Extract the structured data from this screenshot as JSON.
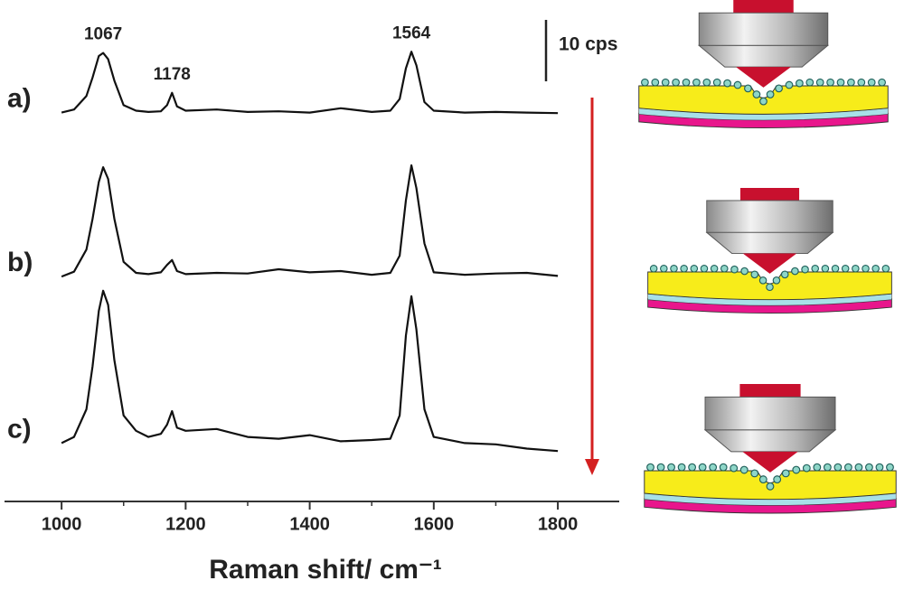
{
  "chart_data": {
    "type": "line",
    "x_label": "Raman shift/ cm⁻¹",
    "x": [
      1000,
      1020,
      1040,
      1050,
      1060,
      1067,
      1075,
      1085,
      1100,
      1120,
      1140,
      1160,
      1170,
      1178,
      1186,
      1200,
      1250,
      1300,
      1350,
      1400,
      1450,
      1500,
      1530,
      1545,
      1555,
      1564,
      1572,
      1585,
      1600,
      1650,
      1700,
      1750,
      1800
    ],
    "series": [
      {
        "name": "a)",
        "color": "#111111",
        "values": [
          63.3,
          63.8,
          66,
          69,
          72.5,
          73,
          72,
          68.5,
          64.5,
          63.6,
          63.4,
          63.5,
          64.5,
          66.5,
          64.3,
          63.6,
          63.8,
          63.4,
          63.5,
          63.3,
          64,
          63.4,
          63.6,
          65.5,
          70.5,
          73.2,
          71,
          65,
          63.6,
          63.3,
          63.4,
          63.3,
          63.2
        ]
      },
      {
        "name": "b)",
        "color": "#111111",
        "values": [
          36.6,
          37.4,
          41,
          46,
          52,
          54.4,
          52.5,
          46,
          39,
          37.2,
          37,
          37.3,
          38.5,
          39.3,
          37.5,
          37,
          37.2,
          37.1,
          37.8,
          37.3,
          37.5,
          36.9,
          37.2,
          40,
          49,
          54.7,
          51,
          42,
          37.3,
          36.9,
          37.1,
          37.2,
          36.7
        ]
      },
      {
        "name": "c)",
        "color": "#111111",
        "values": [
          9.5,
          10.5,
          15,
          22,
          31,
          34.3,
          32,
          23,
          14,
          11.5,
          10.5,
          11,
          12.5,
          14.7,
          12,
          11.5,
          11.8,
          10.5,
          10.2,
          10.8,
          9.8,
          10,
          10.2,
          14,
          27,
          33.4,
          28,
          15,
          10.5,
          9.5,
          9.3,
          8.6,
          8.2
        ]
      }
    ],
    "xlim": [
      908,
      1899
    ],
    "xticks": [
      1000,
      1200,
      1400,
      1600,
      1800
    ],
    "xminorticks": [
      1100,
      1300,
      1500,
      1700
    ],
    "ylim": [
      0,
      80
    ],
    "peak_labels": [
      1067,
      1178,
      1564
    ],
    "scale_bar": {
      "value": 10,
      "label": "10 cps"
    }
  }
}
